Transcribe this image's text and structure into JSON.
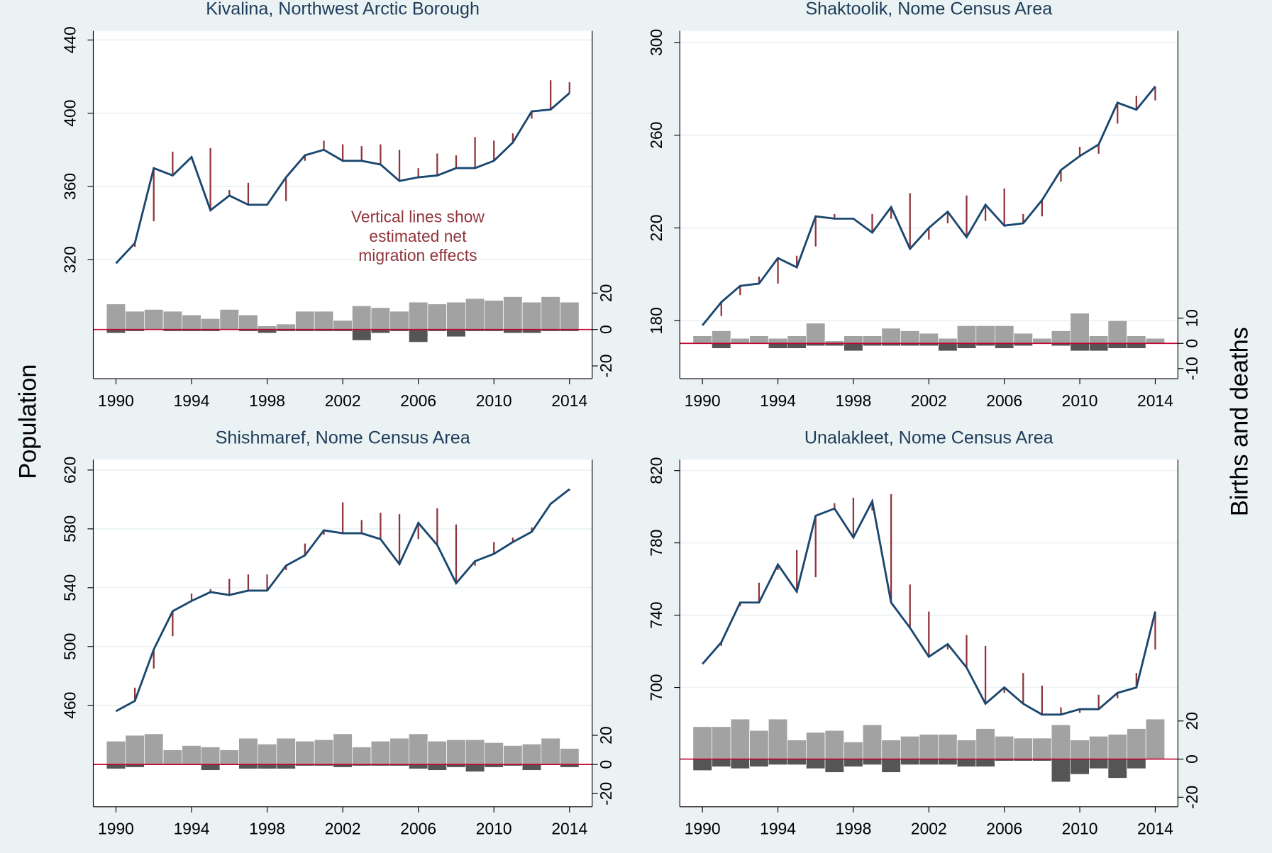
{
  "y_label": "Population",
  "y2_label": "Births and deaths",
  "chart_data": [
    {
      "type": "line",
      "title": "Kivalina, Northwest Arctic Borough",
      "x": [
        1990,
        1991,
        1992,
        1993,
        1994,
        1995,
        1996,
        1997,
        1998,
        1999,
        2000,
        2001,
        2002,
        2003,
        2004,
        2005,
        2006,
        2007,
        2008,
        2009,
        2010,
        2011,
        2012,
        2013,
        2014
      ],
      "population": [
        318,
        329,
        370,
        366,
        376,
        347,
        355,
        350,
        350,
        365,
        377,
        380,
        374,
        374,
        372,
        363,
        365,
        366,
        370,
        370,
        374,
        384,
        401,
        402,
        411
      ],
      "migration": [
        null,
        2,
        29,
        -13,
        1,
        -34,
        -3,
        -12,
        0,
        13,
        3,
        -5,
        -9,
        -8,
        -11,
        -17,
        -5,
        -12,
        -7,
        -17,
        -11,
        -5,
        4,
        -16,
        -6
      ],
      "births": [
        14,
        10,
        11,
        10,
        8,
        6,
        11,
        8,
        2,
        3,
        10,
        10,
        5,
        13,
        12,
        10,
        15,
        14,
        15,
        17,
        16,
        18,
        15,
        18,
        15
      ],
      "deaths": [
        -2,
        -1,
        0,
        -1,
        -1,
        -1,
        0,
        -1,
        -2,
        -1,
        -1,
        -1,
        -1,
        -6,
        -2,
        -1,
        -7,
        -1,
        -4,
        -1,
        -1,
        -2,
        -2,
        -1,
        -1
      ],
      "annotation": [
        "Vertical lines show",
        "estimated net",
        "migration effects"
      ],
      "xlim": [
        1988.8,
        2015.2
      ],
      "xticks": [
        1990,
        1994,
        1998,
        2002,
        2006,
        2010,
        2014
      ],
      "ylim": [
        255,
        445
      ],
      "yticks": [
        320,
        360,
        400,
        440
      ],
      "y2lim": [
        -27,
        164
      ],
      "y2ticks": [
        -20,
        0,
        20
      ]
    },
    {
      "type": "line",
      "title": "Shaktoolik, Nome Census Area",
      "x": [
        1990,
        1991,
        1992,
        1993,
        1994,
        1995,
        1996,
        1997,
        1998,
        1999,
        2000,
        2001,
        2002,
        2003,
        2004,
        2005,
        2006,
        2007,
        2008,
        2009,
        2010,
        2011,
        2012,
        2013,
        2014
      ],
      "population": [
        178,
        188,
        195,
        196,
        207,
        203,
        225,
        224,
        224,
        218,
        229,
        211,
        220,
        227,
        216,
        230,
        221,
        222,
        232,
        245,
        251,
        256,
        274,
        271,
        281
      ],
      "migration": [
        null,
        6,
        4,
        -3,
        11,
        -5,
        13,
        -2,
        0,
        -8,
        5,
        -24,
        5,
        5,
        -18,
        7,
        -16,
        -4,
        7,
        5,
        -4,
        4,
        9,
        -6,
        6
      ],
      "births": [
        3,
        5,
        2,
        3,
        2,
        3,
        8,
        1,
        3,
        3,
        6,
        5,
        4,
        2,
        7,
        7,
        7,
        4,
        2,
        5,
        12,
        3,
        9,
        3,
        2
      ],
      "deaths": [
        0,
        -2,
        0,
        0,
        -2,
        -2,
        -1,
        -1,
        -3,
        -1,
        -1,
        -1,
        -1,
        -3,
        -2,
        -1,
        -2,
        -1,
        0,
        -1,
        -3,
        -3,
        -2,
        -2,
        0
      ],
      "xlim": [
        1988.8,
        2015.2
      ],
      "xticks": [
        1990,
        1994,
        1998,
        2002,
        2006,
        2010,
        2014
      ],
      "ylim": [
        155,
        305
      ],
      "yticks": [
        180,
        220,
        260,
        300
      ],
      "y2lim": [
        -14,
        124
      ],
      "y2ticks": [
        -10,
        0,
        10
      ]
    },
    {
      "type": "line",
      "title": "Shishmaref, Nome Census Area",
      "x": [
        1990,
        1991,
        1992,
        1993,
        1994,
        1995,
        1996,
        1997,
        1998,
        1999,
        2000,
        2001,
        2002,
        2003,
        2004,
        2005,
        2006,
        2007,
        2008,
        2009,
        2010,
        2011,
        2012,
        2013,
        2014
      ],
      "population": [
        456,
        463,
        498,
        524,
        531,
        537,
        535,
        538,
        538,
        555,
        562,
        579,
        577,
        577,
        573,
        556,
        584,
        569,
        543,
        558,
        563,
        571,
        578,
        597,
        607
      ],
      "migration": [
        null,
        -9,
        13,
        17,
        -5,
        -2,
        -11,
        -11,
        -11,
        3,
        -8,
        3,
        -21,
        -9,
        -18,
        -34,
        11,
        -25,
        -40,
        3,
        -8,
        -3,
        -3,
        0,
        1
      ],
      "births": [
        16,
        20,
        21,
        10,
        13,
        12,
        10,
        18,
        14,
        18,
        16,
        17,
        21,
        12,
        16,
        18,
        21,
        16,
        17,
        17,
        15,
        13,
        14,
        18,
        11
      ],
      "deaths": [
        -3,
        -2,
        0,
        0,
        0,
        -4,
        0,
        -3,
        -3,
        -3,
        -1,
        -1,
        -2,
        -1,
        -1,
        -1,
        -3,
        -4,
        -2,
        -5,
        -2,
        -1,
        -4,
        0,
        -2
      ],
      "xlim": [
        1988.8,
        2015.2
      ],
      "xticks": [
        1990,
        1994,
        1998,
        2002,
        2006,
        2010,
        2014
      ],
      "ylim": [
        391,
        627
      ],
      "yticks": [
        460,
        500,
        540,
        580,
        620
      ],
      "y2lim": [
        -29,
        209
      ],
      "y2ticks": [
        -20,
        0,
        20
      ]
    },
    {
      "type": "line",
      "title": "Unalakleet, Nome Census Area",
      "x": [
        1990,
        1991,
        1992,
        1993,
        1994,
        1995,
        1996,
        1997,
        1998,
        1999,
        2000,
        2001,
        2002,
        2003,
        2004,
        2005,
        2006,
        2007,
        2008,
        2009,
        2010,
        2011,
        2012,
        2013,
        2014
      ],
      "population": [
        713,
        725,
        747,
        747,
        768,
        753,
        795,
        799,
        783,
        803,
        747,
        733,
        717,
        724,
        711,
        691,
        700,
        691,
        685,
        685,
        688,
        688,
        697,
        700,
        742
      ],
      "migration": [
        null,
        2,
        2,
        -11,
        3,
        -23,
        34,
        -3,
        -22,
        5,
        -60,
        -24,
        -25,
        3,
        -18,
        -32,
        3,
        -17,
        -16,
        -4,
        2,
        -8,
        3,
        -8,
        21
      ],
      "births": [
        17,
        17,
        21,
        15,
        21,
        10,
        14,
        15,
        9,
        18,
        10,
        12,
        13,
        13,
        10,
        16,
        12,
        11,
        11,
        18,
        10,
        12,
        13,
        16,
        21
      ],
      "deaths": [
        -6,
        -4,
        -5,
        -4,
        -3,
        -3,
        -5,
        -7,
        -4,
        -3,
        -7,
        -3,
        -3,
        -3,
        -4,
        -4,
        -1,
        -1,
        -1,
        -12,
        -8,
        -5,
        -10,
        -5,
        0
      ],
      "xlim": [
        1988.8,
        2015.2
      ],
      "xticks": [
        1990,
        1994,
        1998,
        2002,
        2006,
        2010,
        2014
      ],
      "ylim": [
        634,
        826
      ],
      "yticks": [
        700,
        740,
        780,
        820
      ],
      "y2lim": [
        -25,
        157
      ],
      "y2ticks": [
        -20,
        0,
        20
      ]
    }
  ]
}
